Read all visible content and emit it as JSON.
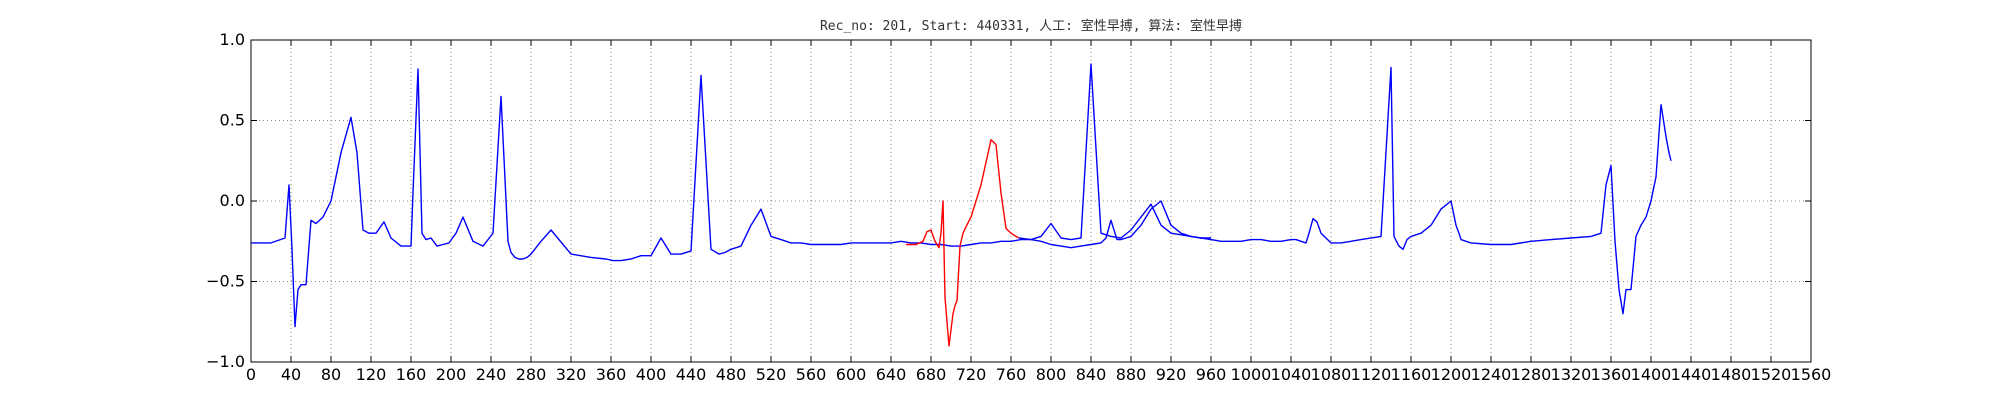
{
  "chart_data": {
    "type": "line",
    "title": "Rec_no: 201, Start: 440331, 人工: 室性早搏, 算法: 室性早搏",
    "xlabel": "",
    "ylabel": "",
    "xlim": [
      0,
      1560
    ],
    "ylim": [
      -1.0,
      1.0
    ],
    "grid": true,
    "yticks": [
      1.0,
      0.5,
      0.0,
      -0.5,
      -1.0
    ],
    "ytick_labels": [
      "1.0",
      "0.5",
      "0.0",
      "−0.5",
      "−1.0"
    ],
    "xticks": [
      0,
      40,
      80,
      120,
      160,
      200,
      240,
      280,
      320,
      360,
      400,
      440,
      480,
      520,
      560,
      600,
      640,
      680,
      720,
      760,
      800,
      840,
      880,
      920,
      960,
      1000,
      1040,
      1080,
      1120,
      1160,
      1200,
      1240,
      1280,
      1320,
      1360,
      1400,
      1440,
      1480,
      1520,
      1560
    ],
    "xtick_labels": [
      "0",
      "40",
      "80",
      "120",
      "160",
      "200",
      "240",
      "280",
      "320",
      "360",
      "400",
      "440",
      "480",
      "520",
      "560",
      "600",
      "640",
      "680",
      "720",
      "760",
      "800",
      "840",
      "880",
      "920",
      "960",
      "1000",
      "1040",
      "1080",
      "1120",
      "1160",
      "1200",
      "1240",
      "1280",
      "1320",
      "1360",
      "1400",
      "1440",
      "1480",
      "1520",
      "1560"
    ],
    "series": [
      {
        "color": "#0000ff",
        "x": [
          0,
          20,
          34,
          38,
          41,
          44,
          47,
          50,
          55,
          60,
          65,
          72,
          80,
          90,
          100,
          106,
          112,
          118,
          125,
          133,
          140,
          150,
          160,
          162,
          167,
          171,
          175,
          180,
          186,
          192,
          198,
          205,
          212,
          222,
          232,
          242,
          250,
          257,
          260,
          264,
          268,
          272,
          276,
          280,
          290,
          300,
          320,
          340,
          355,
          362,
          370,
          380,
          390,
          400,
          410,
          420,
          430,
          440,
          450,
          460,
          468,
          474,
          480,
          490,
          500,
          510,
          520,
          530,
          540,
          550,
          560,
          570,
          580,
          590,
          600,
          610,
          620,
          630,
          640,
          650,
          660,
          670,
          680,
          690,
          700,
          710,
          720,
          730,
          740,
          750,
          760,
          770,
          780,
          790,
          800,
          810,
          820,
          830,
          840,
          850,
          860,
          870,
          880,
          890,
          900,
          910,
          920,
          930,
          940,
          950,
          960
        ],
        "y": [
          -0.26,
          -0.26,
          -0.23,
          0.1,
          -0.3,
          -0.78,
          -0.55,
          -0.52,
          -0.52,
          -0.12,
          -0.14,
          -0.1,
          0.0,
          0.3,
          0.52,
          0.3,
          -0.18,
          -0.2,
          -0.2,
          -0.13,
          -0.23,
          -0.28,
          -0.28,
          0.05,
          0.82,
          -0.2,
          -0.24,
          -0.23,
          -0.28,
          -0.27,
          -0.26,
          -0.2,
          -0.1,
          -0.25,
          -0.28,
          -0.2,
          0.65,
          -0.25,
          -0.32,
          -0.35,
          -0.36,
          -0.36,
          -0.35,
          -0.33,
          -0.25,
          -0.18,
          -0.33,
          -0.35,
          -0.36,
          -0.37,
          -0.37,
          -0.36,
          -0.34,
          -0.34,
          -0.23,
          -0.33,
          -0.33,
          -0.31,
          0.78,
          -0.3,
          -0.33,
          -0.32,
          -0.3,
          -0.28,
          -0.15,
          -0.05,
          -0.22,
          -0.24,
          -0.26,
          -0.26,
          -0.27,
          -0.27,
          -0.27,
          -0.27,
          -0.26,
          -0.26,
          -0.26,
          -0.26,
          -0.26,
          -0.25,
          -0.26,
          -0.26,
          -0.27,
          -0.27,
          -0.28,
          -0.28,
          -0.27,
          -0.26,
          -0.26,
          -0.25,
          -0.25,
          -0.24,
          -0.24,
          -0.22,
          -0.14,
          -0.23,
          -0.24,
          -0.23,
          0.85,
          -0.2,
          -0.22,
          -0.23,
          -0.18,
          -0.1,
          -0.02,
          -0.15,
          -0.2,
          -0.21,
          -0.22,
          -0.23,
          -0.23
        ]
      },
      {
        "color": "#ff0000",
        "x": [
          655,
          665,
          672,
          676,
          680,
          684,
          688,
          690,
          692,
          694,
          698,
          702,
          704,
          706,
          709,
          712,
          715,
          720,
          730,
          740,
          745,
          750,
          755,
          760,
          765,
          768
        ],
        "y": [
          -0.27,
          -0.27,
          -0.25,
          -0.19,
          -0.18,
          -0.25,
          -0.29,
          -0.2,
          0.0,
          -0.6,
          -0.9,
          -0.7,
          -0.65,
          -0.62,
          -0.28,
          -0.2,
          -0.16,
          -0.1,
          0.1,
          0.38,
          0.35,
          0.05,
          -0.17,
          -0.2,
          -0.22,
          -0.23
        ]
      },
      {
        "color": "#0000ff",
        "x": [
          768,
          780,
          790,
          800,
          810,
          820,
          830,
          840,
          850,
          855,
          860,
          864,
          866,
          870,
          875,
          880,
          890,
          900,
          910,
          920,
          930,
          940,
          950,
          960,
          970,
          980,
          990,
          1000,
          1010,
          1020,
          1030,
          1040,
          1045,
          1050,
          1055,
          1058,
          1062,
          1066,
          1070,
          1080,
          1090,
          1100,
          1110,
          1130,
          1140,
          1143,
          1148,
          1152,
          1156,
          1160,
          1170,
          1180,
          1190,
          1200,
          1205,
          1208,
          1210,
          1215,
          1220,
          1240,
          1260,
          1280,
          1300,
          1320,
          1340,
          1350,
          1355,
          1360,
          1364,
          1368,
          1372,
          1375,
          1380,
          1385,
          1390,
          1395,
          1400,
          1405,
          1410
        ],
        "y": [
          -0.23,
          -0.24,
          -0.25,
          -0.27,
          -0.28,
          -0.29,
          -0.28,
          -0.27,
          -0.26,
          -0.23,
          -0.12,
          -0.2,
          -0.24,
          -0.24,
          -0.23,
          -0.22,
          -0.15,
          -0.05,
          0.0,
          -0.15,
          -0.2,
          -0.22,
          -0.23,
          -0.24,
          -0.25,
          -0.25,
          -0.25,
          -0.24,
          -0.24,
          -0.25,
          -0.25,
          -0.24,
          -0.24,
          -0.25,
          -0.26,
          -0.2,
          -0.11,
          -0.13,
          -0.2,
          -0.26,
          -0.26,
          -0.25,
          -0.24,
          -0.22,
          0.83,
          -0.22,
          -0.28,
          -0.3,
          -0.24,
          -0.22,
          -0.2,
          -0.15,
          -0.05,
          0.0,
          -0.15,
          -0.2,
          -0.24,
          -0.25,
          -0.26,
          -0.27,
          -0.27,
          -0.25,
          -0.24,
          -0.23,
          -0.22,
          -0.2,
          0.1,
          0.22,
          -0.25,
          -0.55,
          -0.7,
          -0.55,
          -0.55,
          -0.22,
          -0.15,
          -0.1,
          0.0,
          0.15,
          0.6
        ]
      },
      {
        "color": "#0000ff",
        "x": [
          1410,
          1415,
          1418,
          1420
        ],
        "y": [
          0.6,
          0.4,
          0.3,
          0.25
        ]
      }
    ]
  }
}
